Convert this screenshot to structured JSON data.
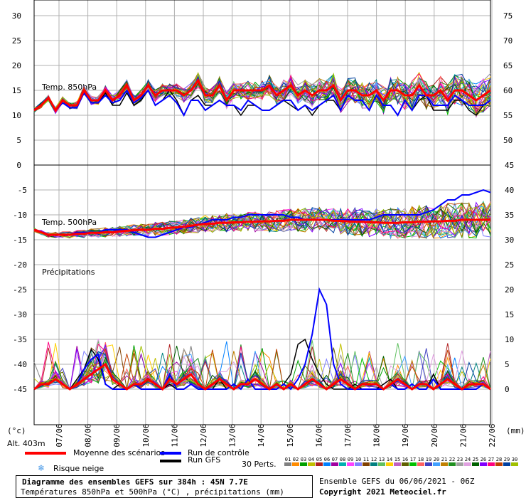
{
  "chart_data": {
    "type": "line",
    "title": "Diagramme des ensembles GEFS sur 384h : 45N 7.7E",
    "subtitle": "Températures 850hPa et 500hPa (°C) , précipitations (mm)",
    "run_info": "Ensemble GEFS du 06/06/2021 - 06Z",
    "copyright": "Copyright 2021 Meteociel.fr",
    "altitude": "Alt. 403m",
    "x_tick_labels": [
      "07/06",
      "08/06",
      "09/06",
      "10/06",
      "11/06",
      "12/06",
      "13/06",
      "14/06",
      "15/06",
      "16/06",
      "17/06",
      "18/06",
      "19/06",
      "20/06",
      "21/06",
      "22/06"
    ],
    "panels": {
      "t850": {
        "label": "Temp. 850hPa",
        "left_ticks": [
          "30",
          "25",
          "20",
          "15",
          "10",
          "5",
          "0"
        ],
        "right_ticks": [
          "75",
          "70",
          "65",
          "60",
          "55",
          "50"
        ],
        "ylim": [
          0,
          32
        ],
        "mean": [
          11,
          12,
          13.5,
          11,
          13,
          12,
          12,
          15,
          13,
          13,
          15,
          13,
          14,
          16,
          13,
          14,
          16,
          14,
          15,
          15,
          15,
          14,
          15,
          17,
          14,
          14,
          16,
          13,
          15,
          15,
          15,
          15,
          15,
          16,
          14,
          15,
          16,
          14,
          15,
          14,
          15,
          15,
          16,
          13,
          15,
          15,
          14,
          14,
          15,
          13,
          15,
          15,
          14,
          14,
          16,
          14,
          14,
          15,
          13,
          15,
          15,
          14,
          13,
          14,
          15
        ],
        "control": [
          11,
          12,
          13.5,
          11,
          12.5,
          11.5,
          11.5,
          14.5,
          12.5,
          12.5,
          14,
          12.5,
          13,
          15,
          12.5,
          13.5,
          15,
          12,
          13,
          14,
          12.5,
          10,
          13,
          13,
          11,
          12,
          13,
          12,
          12,
          11,
          13,
          12,
          11,
          11,
          12,
          13,
          13,
          11,
          12,
          11,
          12,
          13,
          14,
          11,
          14,
          13,
          13,
          11,
          14,
          12,
          12,
          10,
          13,
          11,
          14,
          14,
          12,
          12,
          12,
          14,
          13,
          12,
          12,
          12,
          13
        ],
        "gfs": [
          11,
          12,
          13.5,
          11,
          12.5,
          11.5,
          11.5,
          14.5,
          12.5,
          12.5,
          14.5,
          12,
          12,
          14.5,
          12,
          13,
          15,
          12,
          13,
          15,
          13,
          10,
          13,
          14,
          12,
          12,
          13,
          12,
          12,
          10,
          12,
          12,
          11,
          11,
          12,
          13,
          12,
          11,
          12,
          10,
          12,
          13,
          13,
          11,
          14,
          13,
          13,
          11,
          14,
          12,
          12,
          10,
          13,
          11,
          13,
          14,
          11,
          11,
          11,
          13,
          13,
          11,
          10,
          12,
          13
        ]
      },
      "t500": {
        "label": "Temp. 500hPa",
        "left_ticks": [
          "-5",
          "-10",
          "-15",
          "-20",
          "-25",
          "-30",
          "-35",
          "-40",
          "-45"
        ],
        "right_ticks": [
          "45",
          "40",
          "35",
          "30",
          "25",
          "20",
          "15",
          "10",
          "5",
          "0"
        ],
        "ylim": [
          -45,
          0
        ],
        "mean": [
          -13,
          -13.5,
          -14,
          -14,
          -14,
          -14,
          -13.8,
          -13.8,
          -13.6,
          -13.6,
          -13.5,
          -13.5,
          -13.3,
          -13.2,
          -13.1,
          -13,
          -13,
          -12.8,
          -12.8,
          -12.6,
          -12.5,
          -12.4,
          -12.2,
          -12,
          -11.8,
          -11.8,
          -11.6,
          -11.6,
          -11.5,
          -11.5,
          -11.4,
          -11.4,
          -11.3,
          -11.3,
          -11.2,
          -11.2,
          -11,
          -11,
          -11,
          -11,
          -11,
          -11,
          -11.2,
          -11.2,
          -11.3,
          -11.4,
          -11.4,
          -11.5,
          -11.5,
          -11.6,
          -11.6,
          -11.6,
          -11.5,
          -11.5,
          -11.4,
          -11.4,
          -11.3,
          -11.3,
          -11.2,
          -11.2,
          -11,
          -11,
          -11,
          -11,
          -11
        ],
        "control": [
          -13,
          -13.5,
          -14,
          -14,
          -14,
          -14,
          -13.5,
          -13.5,
          -13.5,
          -13.5,
          -13,
          -13,
          -13,
          -13,
          -13.5,
          -14,
          -14.5,
          -14.5,
          -14,
          -13.5,
          -13,
          -12.5,
          -12.5,
          -12,
          -11.5,
          -11,
          -11,
          -11,
          -10.5,
          -10.5,
          -10,
          -10,
          -10,
          -10,
          -10,
          -10,
          -10.5,
          -10.5,
          -11,
          -11,
          -11,
          -11,
          -11,
          -11,
          -11,
          -11,
          -11,
          -11,
          -10.5,
          -10,
          -10,
          -10,
          -10,
          -10,
          -10,
          -9.5,
          -9,
          -8,
          -7,
          -7,
          -6,
          -6,
          -5.5,
          -5,
          -5.5
        ]
      },
      "precip": {
        "label": "Précipitations",
        "right_ticks": [
          "20",
          "15",
          "10",
          "5",
          "0"
        ],
        "ylim": [
          0,
          22
        ],
        "mean": [
          0,
          1,
          1,
          2,
          1,
          0,
          1,
          2,
          3,
          4,
          5,
          2,
          1,
          0,
          1,
          1,
          2,
          1,
          0,
          2,
          1,
          2,
          3,
          1,
          0,
          1,
          2,
          1,
          0,
          1,
          1,
          2,
          1,
          0,
          1,
          0,
          1,
          0,
          1,
          2,
          1,
          0,
          1,
          2,
          1,
          0,
          1,
          1,
          1,
          0,
          1,
          2,
          1,
          0,
          1,
          1,
          0,
          1,
          2,
          1,
          0,
          1,
          1,
          1,
          0
        ],
        "control": [
          0,
          1,
          1,
          2,
          1,
          0,
          1,
          4,
          6,
          7,
          1,
          0,
          0,
          0,
          1,
          0,
          0,
          0,
          0,
          3,
          0,
          0,
          1,
          0,
          0,
          0,
          0,
          0,
          1,
          0,
          2,
          0,
          0,
          0,
          0,
          1,
          0,
          2,
          5,
          11,
          20,
          17,
          5,
          1,
          0,
          0,
          0,
          0,
          0,
          0,
          1,
          0,
          0,
          1,
          0,
          0,
          2,
          0,
          0,
          0,
          0,
          0,
          0,
          1,
          0
        ],
        "gfs": [
          0,
          1,
          1,
          2,
          1,
          0,
          2,
          4,
          8,
          6,
          1,
          0,
          1,
          0,
          1,
          0,
          0,
          0,
          0,
          1,
          0,
          0,
          1,
          0,
          0,
          0,
          2,
          0,
          1,
          0,
          2,
          0,
          0,
          0,
          0,
          1,
          3,
          9,
          10,
          6,
          3,
          1,
          0,
          0,
          0,
          1,
          0,
          0,
          0,
          1,
          2,
          0,
          0,
          1,
          0,
          0,
          3,
          0,
          0,
          0,
          0,
          0,
          0,
          1,
          0
        ]
      }
    },
    "units_left": "(°c)",
    "units_right": "(mm)",
    "legend": {
      "mean": "Moyenne des scénarios",
      "control": "Run de contrôle",
      "gfs": "Run GFS",
      "snow": "Risque neige",
      "perts": "30 Perts.",
      "pert_ids": [
        "01",
        "02",
        "03",
        "04",
        "05",
        "06",
        "07",
        "08",
        "09",
        "10",
        "11",
        "12",
        "13",
        "14",
        "15",
        "16",
        "17",
        "18",
        "19",
        "20",
        "21",
        "22",
        "23",
        "24",
        "25",
        "26",
        "27",
        "28",
        "29",
        "30"
      ]
    },
    "colors": {
      "mean": "#ff0000",
      "control": "#0000ff",
      "gfs": "#000000",
      "snow": "#4a9ae8",
      "grid": "#b0b0b0",
      "perts": [
        "#808080",
        "#ff8c00",
        "#00a000",
        "#c0c000",
        "#b02020",
        "#0080ff",
        "#a000a0",
        "#00b0b0",
        "#ff40ff",
        "#8080ff",
        "#804000",
        "#008080",
        "#60c060",
        "#ffd000",
        "#c060c0",
        "#606000",
        "#00c000",
        "#ff6060",
        "#4040c0",
        "#40a0ff",
        "#c08000",
        "#209020",
        "#a0a0a0",
        "#e0a0e0",
        "#006000",
        "#8000ff",
        "#ff0080",
        "#c04000",
        "#0040a0",
        "#a0c000"
      ]
    }
  }
}
